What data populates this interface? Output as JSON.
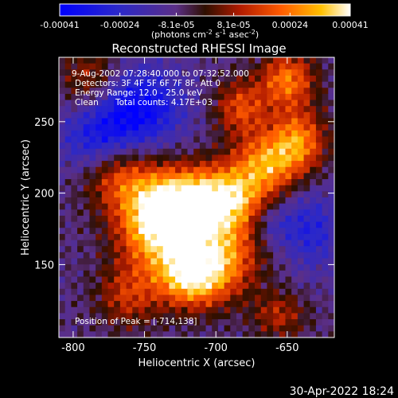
{
  "chart_data": {
    "type": "heatmap",
    "title": "Reconstructed RHESSI Image",
    "xlabel": "Heliocentric X (arcsec)",
    "ylabel": "Heliocentric Y (arcsec)",
    "xlim": [
      -810,
      -617
    ],
    "ylim": [
      99,
      295
    ],
    "x_ticks": [
      -800,
      -750,
      -700,
      -650
    ],
    "y_ticks": [
      150,
      200,
      250
    ],
    "x_tick_labels": [
      "-800",
      "-750",
      "-700",
      "-650"
    ],
    "y_tick_labels": [
      "150",
      "200",
      "250"
    ],
    "colorbar": {
      "range": [
        -0.00041,
        0.00041
      ],
      "ticks": [
        -0.00041,
        -0.00024,
        -8.1e-05,
        8.1e-05,
        0.00024,
        0.00041
      ],
      "tick_labels": [
        "-0.00041",
        "-0.00024",
        "-8.1e-05",
        "8.1e-05",
        "0.00024",
        "0.00041"
      ],
      "unit_label": "(photons cm",
      "unit_exp1": "-2",
      "unit_mid": " s",
      "unit_exp2": "-1",
      "unit_mid2": " asec",
      "unit_exp3": "-2",
      "unit_end": ")"
    },
    "annotations": {
      "time_range": "9-Aug-2002 07:28:40.000 to 07:32:52.000",
      "detectors": "Detectors: 3F 4F 5F 6F 7F 8F, Att 0",
      "energy_range": "Energy Range: 12.0 - 25.0 keV",
      "clean_label": "Clean",
      "total_counts": "Total counts: 4.17E+03",
      "peak": "Position of Peak = [-714,138]"
    },
    "peak": [
      -714,
      138
    ],
    "grid": false,
    "legend": "none"
  },
  "footer": {
    "timestamp": "30-Apr-2022 18:24"
  }
}
